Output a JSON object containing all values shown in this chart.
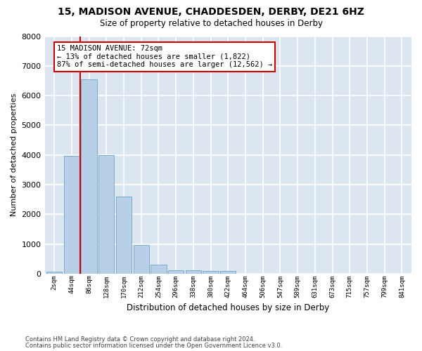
{
  "title1": "15, MADISON AVENUE, CHADDESDEN, DERBY, DE21 6HZ",
  "title2": "Size of property relative to detached houses in Derby",
  "xlabel": "Distribution of detached houses by size in Derby",
  "ylabel": "Number of detached properties",
  "bar_labels": [
    "2sqm",
    "44sqm",
    "86sqm",
    "128sqm",
    "170sqm",
    "212sqm",
    "254sqm",
    "296sqm",
    "338sqm",
    "380sqm",
    "422sqm",
    "464sqm",
    "506sqm",
    "547sqm",
    "589sqm",
    "631sqm",
    "673sqm",
    "715sqm",
    "757sqm",
    "799sqm",
    "841sqm"
  ],
  "bar_values": [
    80,
    3980,
    6550,
    4000,
    2600,
    960,
    310,
    130,
    130,
    100,
    85,
    0,
    0,
    0,
    0,
    0,
    0,
    0,
    0,
    0,
    0
  ],
  "bar_color": "#b8cfe8",
  "bar_edgecolor": "#7aaacb",
  "fig_bg": "#ffffff",
  "ax_bg": "#dce6f0",
  "grid_color": "#ffffff",
  "ylim_max": 8000,
  "vline_x": 1.5,
  "vline_color": "#cc0000",
  "annotation_text": "15 MADISON AVENUE: 72sqm\n← 13% of detached houses are smaller (1,822)\n87% of semi-detached houses are larger (12,562) →",
  "ann_box_fc": "#ffffff",
  "ann_box_ec": "#cc0000",
  "footnote1": "Contains HM Land Registry data © Crown copyright and database right 2024.",
  "footnote2": "Contains public sector information licensed under the Open Government Licence v3.0."
}
